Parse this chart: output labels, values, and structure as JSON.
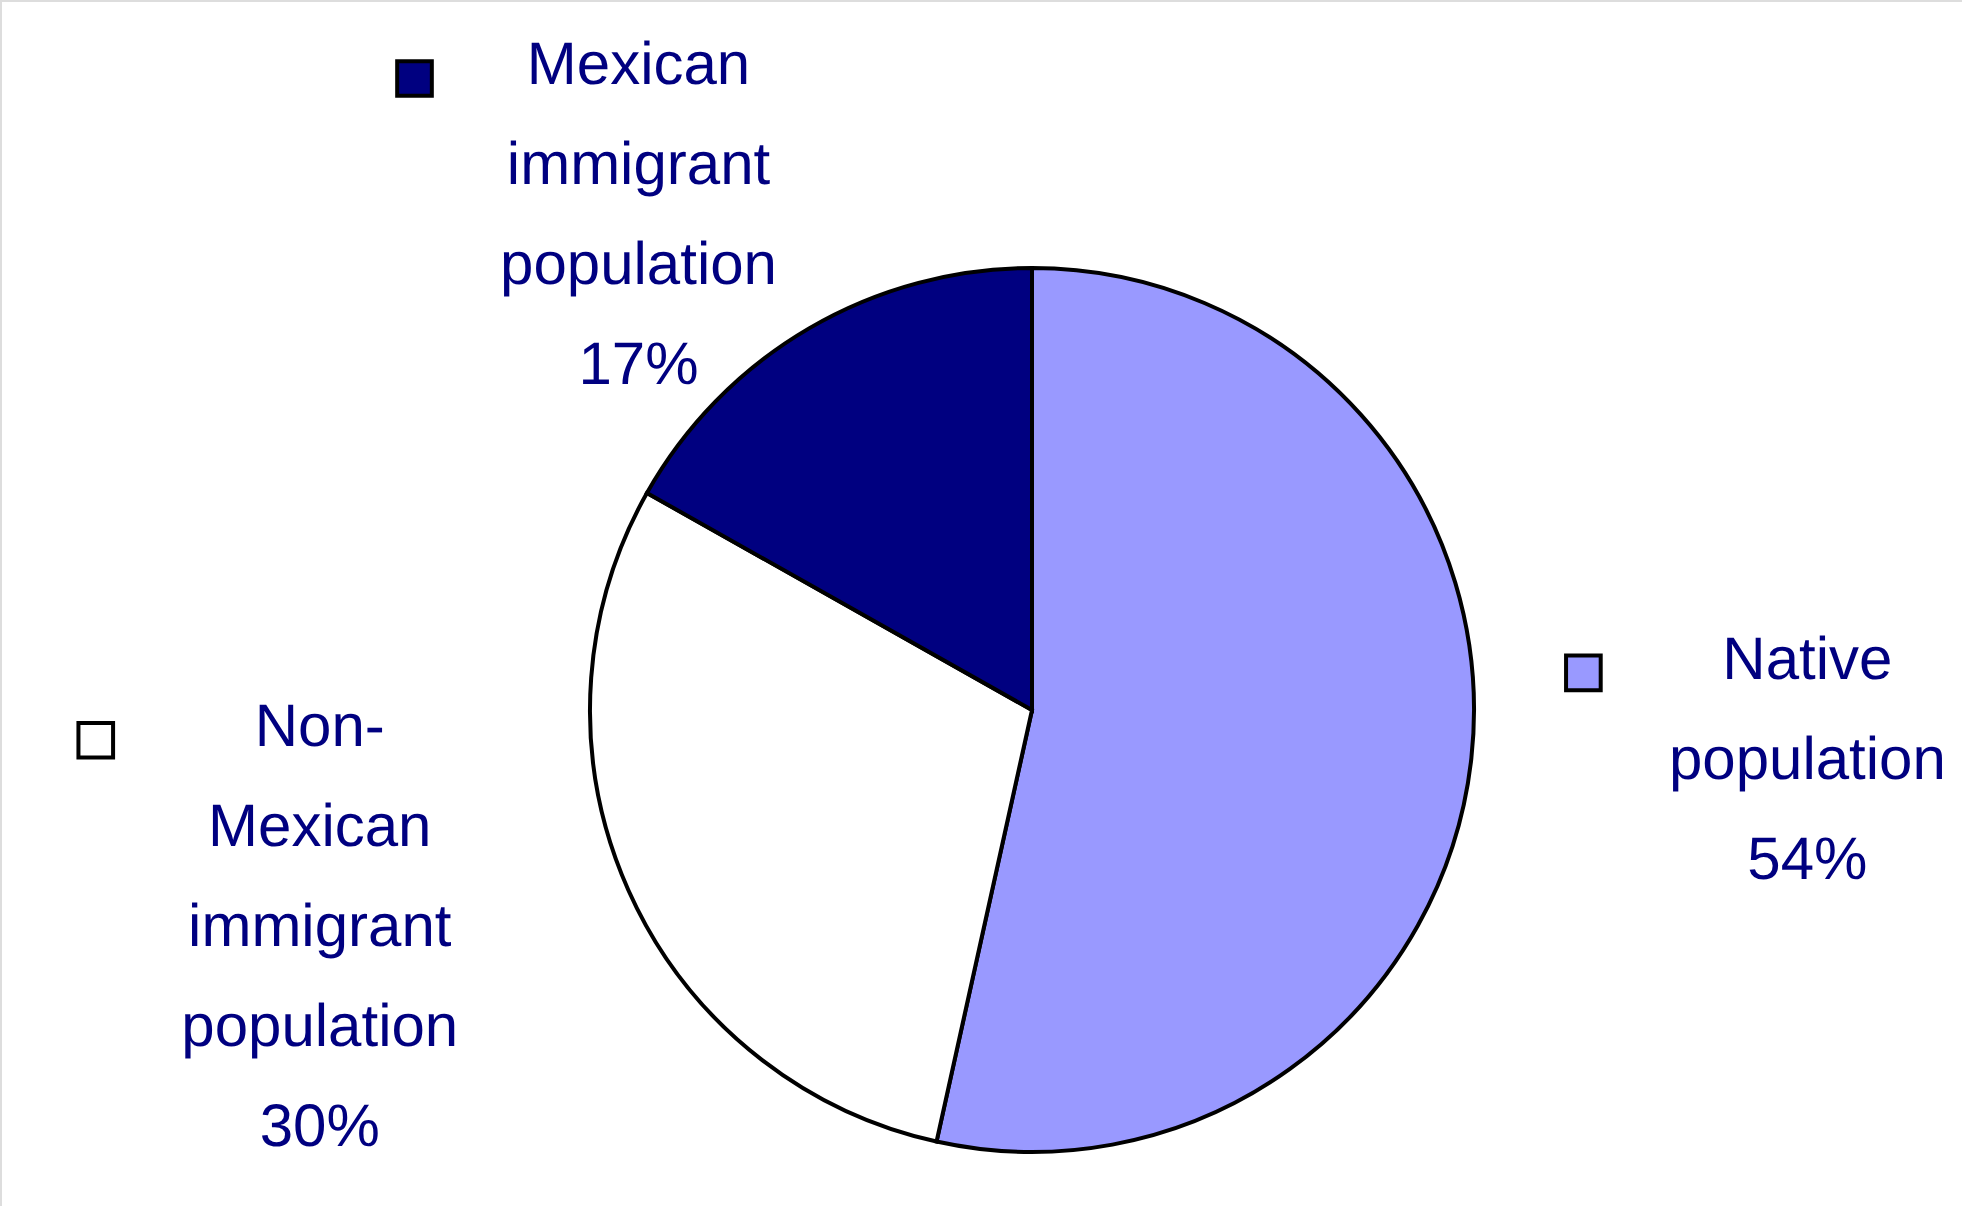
{
  "chart_data": {
    "type": "pie",
    "categories": [
      "Native population",
      "Non-Mexican immigrant population",
      "Mexican immigrant population"
    ],
    "values": [
      54,
      30,
      17
    ],
    "colors": [
      "#9999ff",
      "#ffffff",
      "#000080"
    ],
    "value_labels": [
      "54%",
      "30%",
      "17%"
    ],
    "legend": "right"
  }
}
